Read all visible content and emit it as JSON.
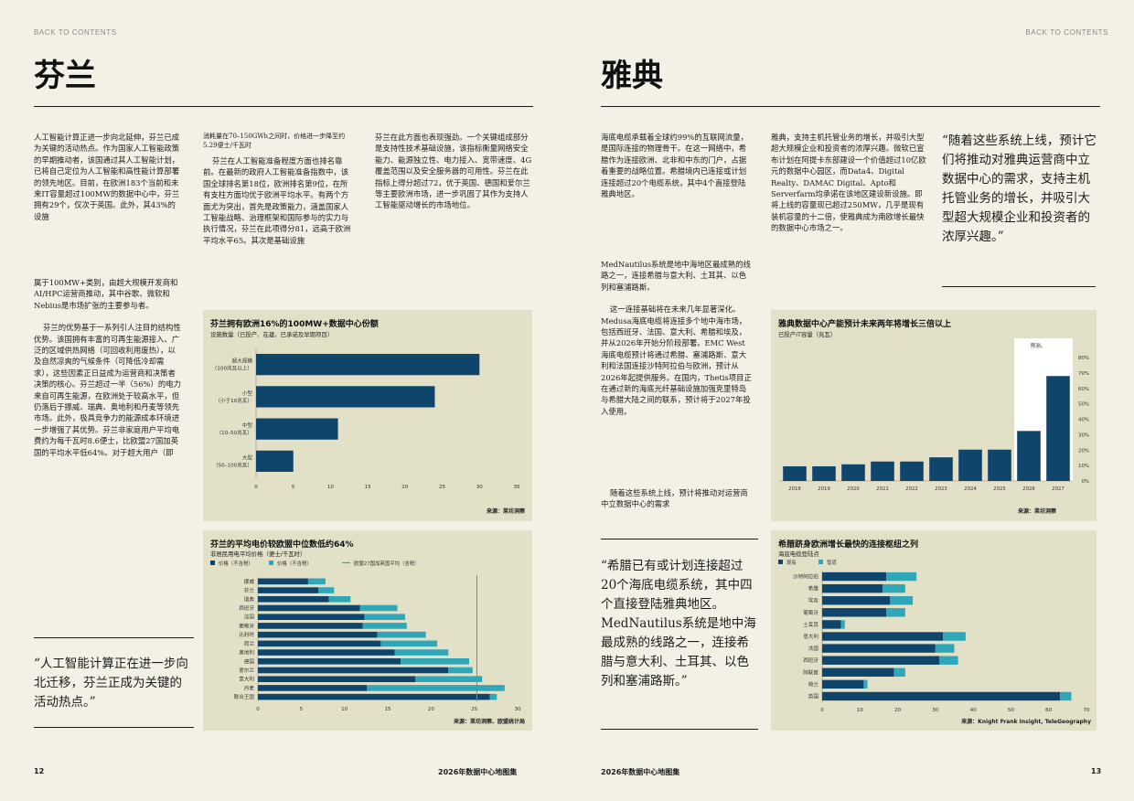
{
  "nav": {
    "back_left": "BACK TO CONTENTS",
    "back_right": "BACK TO CONTENTS"
  },
  "left": {
    "title": "芬兰",
    "col1_p1": "人工智能计算正进一步向北延伸，芬兰已成为关键的活动热点。作为国家人工智能政策的早期推动者，该国通过其人工智能计划，已将自己定位为人工智能和高性能计算部署的领先地区。目前，在欧洲183个当前和未来IT容量超过100MW的数据中心中，芬兰拥有29个，仅次于英国。此外，其43%的设施",
    "col1_p2": "属于100MW+类别，由超大规模开发商和AI/HPC运营商推动，其中谷歌、微软和Nebius是市场扩张的主要参与者。",
    "col1_p3": "芬兰的优势基于一系列引人注目的结构性优势。该国拥有丰富的可再生能源接入、广泛的区域供热网络（可回收利用废热），以及自然凉爽的气候条件（可降低冷却需求），这些因素正日益成为运营商和决策者决策的核心。芬兰超过一半（56%）的电力来自可再生能源，在欧洲处于较高水平，但仍落后于挪威、瑞典、奥地利和丹麦等领先市场。此外，极具竞争力的能源成本环境进一步增强了其优势。芬兰非家庭用户平均电费约为每千瓦时8.6便士，比欧盟27国加英国的平均水平低64%。对于超大用户（即",
    "col2_p1": "消耗量在70–150GWh之间时，价格进一步降至约5.29便士/千瓦时",
    "col2_p2": "芬兰在人工智能准备程度方面也排名靠前。在最新的政府人工智能准备指数中，该国全球排名第18位，欧洲排名第9位，在所有支柱方面均优于欧洲平均水平。有两个方面尤为突出，首先是政策能力，涵盖国家人工智能战略、治理框架和国际参与的实力与执行情况，芬兰在此项得分81，远高于欧洲平均水平65。其次是基础设施",
    "col3_p1": "芬兰在此方面也表现强劲。一个关键组成部分是支持性技术基础设施，该指标衡量网络安全能力、能源独立性、电力接入、宽带速度、4G覆盖范围以及安全服务器的可用性。芬兰在此指标上得分超过72，优于英国、德国和爱尔兰等主要欧洲市场，进一步巩固了其作为支持人工智能驱动增长的市场地位。",
    "quote": "“人工智能计算正在进一步向北迁移，芬兰正成为关键的活动热点。”",
    "page_num": "12",
    "footer_title": "2026年数据中心地图集"
  },
  "right": {
    "title": "雅典",
    "col1_p1": "海底电缆承载着全球约99%的互联网流量，是国际连接的物理骨干。在这一网络中，希腊作为连接欧洲、北非和中东的门户，占据着重要的战略位置。希腊境内已连接或计划连接超过20个电缆系统，其中4个直接登陆雅典地区。",
    "col1_p2": "MedNautilus系统是地中海地区最成熟的线路之一，连接希腊与意大利、土耳其、以色列和塞浦路斯。",
    "col1_p3": "这一连接基础将在未来几年显著深化。Medusa海底电缆将连接多个地中海市场，包括西班牙、法国、意大利、希腊和埃及，并从2026年开始分阶段部署。EMC West海底电缆预计将通过希腊、塞浦路斯、意大利和法国连接沙特阿拉伯与欧洲，预计从2026年起提供服务。在国内，Thetis项目正在通过新的海底光纤基础设施加强克里特岛与希腊大陆之间的联系，预计将于2027年投入使用。",
    "col1_p4": "随着这些系统上线，预计将推动对运营商中立数据中心的需求",
    "col2_p1": "雅典，支持主机托管业务的增长，并吸引大型超大规模企业和投资者的浓厚兴趣。微软已宣布计划在阿提卡东部建设一个价值超过10亿欧元的数据中心园区，而Data4、Digital Realty、DAMAC Digital、Apto和Serverfarm均承诺在该地区建设新设施。即将上线的容量现已超过250MW，几乎是现有装机容量的十二倍，使雅典成为南欧增长最快的数据中心市场之一。",
    "quote_top": "“随着这些系统上线，预计它们将推动对雅典运营商中立数据中心的需求，支持主机托管业务的增长，并吸引大型超大规模企业和投资者的浓厚兴趣。”",
    "quote_mid": "“希腊已有或计划连接超过20个海底电缆系统，其中四个直接登陆雅典地区。MedNautilus系统是地中海最成熟的线路之一，连接希腊与意大利、土耳其、以色列和塞浦路斯。”",
    "page_num": "13",
    "footer_title": "2026年数据中心地图集"
  },
  "chart_data": [
    {
      "id": "finland-capacity",
      "type": "bar",
      "orientation": "horizontal",
      "title": "芬兰拥有欧洲16%的100MW+数据中心份额",
      "subtitle": "设施数量（已投产、在建、已承诺及早期项目）",
      "categories": [
        [
          "超大规模",
          "（100兆瓦以上）"
        ],
        [
          "小型",
          "（小于10兆瓦）"
        ],
        [
          "中型",
          "（10–50兆瓦）"
        ],
        [
          "大型",
          "（50–100兆瓦）"
        ]
      ],
      "values": [
        30,
        24,
        11,
        5
      ],
      "xlim": [
        0,
        35
      ],
      "xticks": [
        0,
        5,
        10,
        15,
        20,
        25,
        30,
        35
      ],
      "source": "来源：莱坊洞察"
    },
    {
      "id": "finland-electricity",
      "type": "bar",
      "orientation": "horizontal",
      "stacked": true,
      "title": "芬兰的平均电价较欧盟中位数低约64%",
      "subtitle": "非居民用电平均价格（便士/千瓦时）",
      "legend": [
        "价格（不含税）",
        "价格（不含税）",
        "欧盟27国加英国平均（含税）"
      ],
      "categories": [
        "挪威",
        "芬兰",
        "瑞典",
        "西班牙",
        "法国",
        "葡萄牙",
        "比利时",
        "荷兰",
        "奥地利",
        "德国",
        "爱尔兰",
        "意大利",
        "丹麦",
        "联合王国"
      ],
      "series": [
        {
          "name": "价格（不含税）",
          "values": [
            5.8,
            7.0,
            8.2,
            11.8,
            12.3,
            12.1,
            13.8,
            14.2,
            15.8,
            16.5,
            22.0,
            18.2,
            12.6,
            26.8
          ]
        },
        {
          "name": "价格（不含税）",
          "values": [
            2.0,
            1.8,
            2.5,
            4.3,
            4.7,
            5.1,
            5.6,
            6.5,
            6.2,
            7.9,
            2.8,
            7.7,
            15.9,
            0.8
          ]
        }
      ],
      "reference": 25.3,
      "xlim": [
        0,
        30
      ],
      "xticks": [
        0,
        5,
        10,
        15,
        20,
        25,
        30
      ],
      "source": "来源：莱坊洞察、欧盟统计局"
    },
    {
      "id": "athens-capacity",
      "type": "bar",
      "title": "雅典数据中心产能预计未来两年将增长三倍以上",
      "subtitle": "已投产IT容量（兆瓦）",
      "categories": [
        "2018",
        "2019",
        "2020",
        "2021",
        "2022",
        "2023",
        "2024",
        "2025",
        "2026",
        "2027"
      ],
      "values": [
        9.5,
        9.5,
        10.8,
        12.6,
        12.6,
        15.3,
        20.3,
        20.3,
        32.4,
        68.0
      ],
      "forecast_label": "预测。",
      "forecast_from": "2026",
      "yticks": [
        "80%",
        "70%",
        "60%",
        "50%",
        "40%",
        "30%",
        "20%",
        "10%",
        "0%"
      ],
      "ylim": [
        0,
        80
      ],
      "source": "来源：莱坊洞察"
    },
    {
      "id": "greece-cables",
      "type": "bar",
      "orientation": "horizontal",
      "stacked": true,
      "title": "希腊跻身欧洲增长最快的连接枢纽之列",
      "subtitle": "海底电缆登陆点",
      "legend": [
        "现有",
        "管道"
      ],
      "categories": [
        "沙特阿拉伯",
        "希腊",
        "埃及",
        "葡萄牙",
        "土耳其",
        "意大利",
        "法国",
        "西班牙",
        "阿联酋",
        "荷兰",
        "英国"
      ],
      "series": [
        {
          "name": "现有",
          "values": [
            17,
            16,
            18,
            17,
            5,
            32,
            30,
            31,
            19,
            11,
            63
          ]
        },
        {
          "name": "管道",
          "values": [
            8,
            6,
            6,
            5,
            1,
            6,
            5,
            5,
            3,
            1,
            3
          ]
        }
      ],
      "xlim": [
        0,
        70
      ],
      "xticks": [
        0,
        10,
        20,
        30,
        40,
        50,
        60,
        70
      ],
      "source": "来源：Knight Frank Insight, TeleGeography"
    }
  ],
  "colors": {
    "navy": "#10456b",
    "teal": "#2fa7b9",
    "panel": "#e3e0c8",
    "page": "#f3f0e6"
  }
}
